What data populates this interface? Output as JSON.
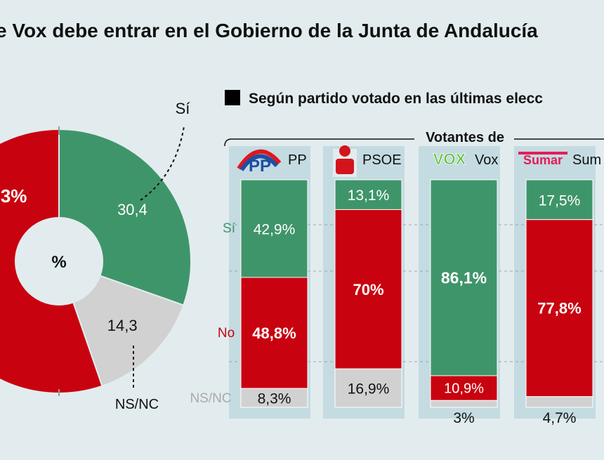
{
  "title": "e Vox debe entrar en el Gobierno de la Junta de Andalucía",
  "subtitle": "Según partido votado en las últimas elecc",
  "colors": {
    "si": "#3f956a",
    "no": "#c9020f",
    "nsnc": "#d1d1d1",
    "panel": "#c4dbe1",
    "bg": "#e2ecef"
  },
  "chart_data": [
    {
      "type": "pie",
      "center_label": "%",
      "slices": [
        {
          "name": "Sí",
          "value": 30.4,
          "label": "30,4",
          "color": "#3f956a"
        },
        {
          "name": "NS/NC",
          "value": 14.3,
          "label": "14,3",
          "color": "#d1d1d1"
        },
        {
          "name": "No",
          "value": 55.3,
          "label": ",3%",
          "color": "#c9020f"
        }
      ]
    },
    {
      "type": "bar",
      "stacked": true,
      "group_label": "Votantes de",
      "categories": [
        "PP",
        "PSOE",
        "Vox",
        "Sum"
      ],
      "row_labels": {
        "si": "Sí",
        "no": "No",
        "nsnc": "NS/NC"
      },
      "series": [
        {
          "name": "Sí",
          "color": "#3f956a",
          "values": [
            42.9,
            13.1,
            86.1,
            17.5
          ],
          "labels": [
            "42,9%",
            "13,1%",
            "86,1%",
            "17,5%"
          ]
        },
        {
          "name": "No",
          "color": "#c9020f",
          "values": [
            48.8,
            70,
            10.9,
            77.8
          ],
          "labels": [
            "48,8%",
            "70%",
            "10,9%",
            "77,8%"
          ]
        },
        {
          "name": "NS/NC",
          "color": "#d1d1d1",
          "values": [
            8.3,
            16.9,
            3,
            4.7
          ],
          "labels": [
            "8,3%",
            "16,9%",
            "3%",
            "4,7%"
          ]
        }
      ],
      "logos": [
        "pp",
        "psoe",
        "vox",
        "sumar"
      ],
      "logo_texts": [
        "PP",
        "VOX",
        "Sumar"
      ],
      "ylim": [
        0,
        100
      ]
    }
  ]
}
